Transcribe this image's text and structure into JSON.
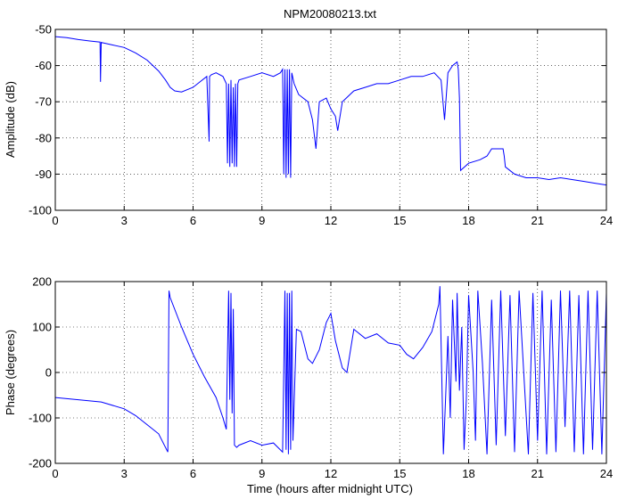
{
  "title": "NPM20080213.txt",
  "chart_data": [
    {
      "type": "line",
      "title": "NPM20080213.txt",
      "xlabel": "",
      "ylabel": "Amplitude (dB)",
      "xlim": [
        0,
        24
      ],
      "ylim": [
        -100,
        -50
      ],
      "xticks": [
        0,
        3,
        6,
        9,
        12,
        15,
        18,
        21,
        24
      ],
      "yticks": [
        -100,
        -90,
        -80,
        -70,
        -60,
        -50
      ],
      "grid": true,
      "line_color": "#0000ff",
      "series": [
        {
          "x": [
            0,
            0.5,
            1,
            1.5,
            1.95,
            1.97,
            2.0,
            2.5,
            3,
            3.5,
            4,
            4.5,
            4.8,
            5.0,
            5.2,
            5.5,
            6,
            6.3,
            6.6,
            6.7,
            6.72,
            6.8,
            7.0,
            7.3,
            7.45,
            7.5,
            7.55,
            7.6,
            7.65,
            7.7,
            7.75,
            7.8,
            7.85,
            7.9,
            7.95,
            8.0,
            8.5,
            9.0,
            9.5,
            9.8,
            9.9,
            9.95,
            10.0,
            10.05,
            10.1,
            10.15,
            10.2,
            10.25,
            10.3,
            10.4,
            10.6,
            11.0,
            11.2,
            11.35,
            11.5,
            11.8,
            12.0,
            12.2,
            12.3,
            12.5,
            13.0,
            13.5,
            14.0,
            14.5,
            15.0,
            15.5,
            16.0,
            16.5,
            16.8,
            16.95,
            17.1,
            17.3,
            17.5,
            17.55,
            17.6,
            17.65,
            18.0,
            18.5,
            18.8,
            19.0,
            19.5,
            19.55,
            19.6,
            20.0,
            20.5,
            21.0,
            21.5,
            22.0,
            22.5,
            23.0,
            23.5,
            24.0
          ],
          "y": [
            -52,
            -52.3,
            -52.8,
            -53.2,
            -53.5,
            -64.5,
            -53.6,
            -54.3,
            -55,
            -56.5,
            -58.5,
            -61.5,
            -64,
            -66,
            -67,
            -67.3,
            -66,
            -64.5,
            -63,
            -81,
            -63,
            -62.5,
            -62,
            -63,
            -65,
            -87,
            -65,
            -88,
            -64,
            -87,
            -66,
            -88,
            -65,
            -88,
            -65,
            -64,
            -63,
            -62,
            -63,
            -62,
            -61,
            -90,
            -61,
            -91,
            -61,
            -90,
            -61,
            -91,
            -62,
            -65,
            -68,
            -70,
            -75,
            -83,
            -70,
            -69,
            -72,
            -74,
            -78,
            -70,
            -67,
            -66,
            -65,
            -65,
            -64,
            -63,
            -63,
            -62,
            -64,
            -75,
            -62,
            -60,
            -59,
            -61,
            -69,
            -89,
            -87,
            -86,
            -85,
            -83,
            -83,
            -85,
            -88,
            -90,
            -91,
            -91,
            -91.5,
            -91,
            -91.5,
            -92,
            -92.5,
            -93
          ]
        }
      ]
    },
    {
      "type": "line",
      "title": "",
      "xlabel": "Time (hours after midnight UTC)",
      "ylabel": "Phase (degrees)",
      "xlim": [
        0,
        24
      ],
      "ylim": [
        -200,
        200
      ],
      "xticks": [
        0,
        3,
        6,
        9,
        12,
        15,
        18,
        21,
        24
      ],
      "yticks": [
        -200,
        -100,
        0,
        100,
        200
      ],
      "grid": true,
      "line_color": "#0000ff",
      "series": [
        {
          "x": [
            0,
            1,
            2,
            3,
            3.5,
            4,
            4.5,
            4.9,
            4.95,
            5.0,
            5.5,
            6.0,
            6.5,
            7.0,
            7.3,
            7.45,
            7.5,
            7.55,
            7.6,
            7.65,
            7.7,
            7.75,
            7.8,
            7.9,
            8.0,
            8.5,
            9.0,
            9.5,
            9.9,
            10.0,
            10.05,
            10.1,
            10.15,
            10.2,
            10.25,
            10.3,
            10.35,
            10.5,
            10.7,
            11.0,
            11.2,
            11.5,
            11.8,
            12.0,
            12.2,
            12.5,
            12.7,
            13.0,
            13.5,
            14.0,
            14.5,
            15.0,
            15.3,
            15.6,
            16.0,
            16.4,
            16.7,
            16.75,
            16.9,
            17.0,
            17.1,
            17.2,
            17.3,
            17.45,
            17.5,
            17.6,
            17.7,
            17.8,
            17.9,
            18.0,
            18.2,
            18.3,
            18.4,
            18.6,
            18.8,
            19.0,
            19.2,
            19.4,
            19.6,
            19.8,
            20.0,
            20.2,
            20.4,
            20.6,
            20.8,
            21.0,
            21.2,
            21.4,
            21.6,
            21.8,
            22.0,
            22.2,
            22.4,
            22.6,
            22.8,
            23.0,
            23.2,
            23.4,
            23.6,
            23.8,
            24.0
          ],
          "y": [
            -55,
            -60,
            -65,
            -80,
            -95,
            -115,
            -135,
            -175,
            180,
            165,
            100,
            40,
            -10,
            -55,
            -100,
            -125,
            40,
            180,
            -60,
            175,
            -90,
            140,
            -160,
            -165,
            -160,
            -150,
            -160,
            -155,
            -175,
            180,
            -170,
            175,
            -180,
            175,
            -170,
            180,
            -150,
            95,
            90,
            30,
            20,
            50,
            110,
            130,
            70,
            10,
            0,
            95,
            75,
            85,
            65,
            60,
            40,
            30,
            55,
            90,
            150,
            190,
            -180,
            -50,
            80,
            -100,
            160,
            -20,
            175,
            -40,
            100,
            -170,
            -60,
            170,
            0,
            -150,
            180,
            20,
            -180,
            160,
            -160,
            180,
            -140,
            170,
            -175,
            180,
            0,
            -180,
            175,
            -150,
            180,
            -180,
            160,
            -175,
            180,
            -120,
            180,
            -175,
            170,
            -180,
            180,
            -170,
            180,
            -180,
            175
          ]
        }
      ]
    }
  ]
}
